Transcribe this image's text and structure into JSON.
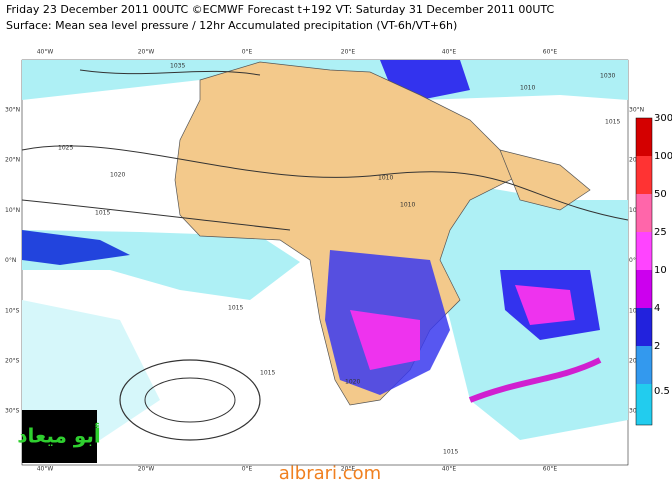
{
  "header": {
    "line1": "Friday 23 December 2011 00UTC ©ECMWF Forecast t+192 VT: Saturday 31 December 2011 00UTC",
    "line2": "Surface: Mean sea level pressure / 12hr Accumulated precipitation (VT-6h/VT+6h)"
  },
  "lon_labels": [
    "40°W",
    "20°W",
    "0°E",
    "20°E",
    "40°E",
    "60°E"
  ],
  "lat_labels": [
    "30°N",
    "20°N",
    "10°N",
    "0°N",
    "10°S",
    "20°S",
    "30°S"
  ],
  "colorbar": {
    "labels": [
      "300",
      "100",
      "50",
      "25",
      "10",
      "4",
      "2",
      "0.5"
    ]
  },
  "isobars": [
    "1035",
    "1025",
    "1020",
    "1015",
    "1015",
    "1010",
    "1015",
    "1020",
    "1010",
    "1030",
    "1015",
    "1015",
    "1010"
  ],
  "watermark": "أبو ميعاد",
  "site": "albrari.com"
}
